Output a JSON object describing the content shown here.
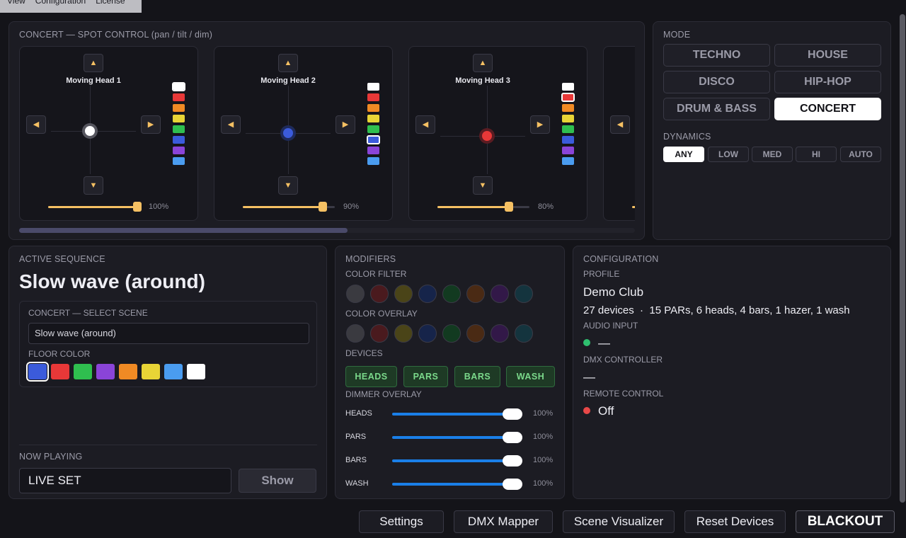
{
  "menu": [
    "View",
    "Configuration",
    "License"
  ],
  "spot": {
    "header": "CONCERT — SPOT CONTROL (pan / tilt / dim)",
    "up_glyph": "▲",
    "down_glyph": "▼",
    "left_glyph": "◀",
    "right_glyph": "▶",
    "heads": [
      {
        "name": "Moving Head 1",
        "dim": "100%",
        "dim_level": 1.0,
        "dot_color": "#ffffff",
        "selected_swatch": 0
      },
      {
        "name": "Moving Head 2",
        "dim": "90%",
        "dim_level": 0.9,
        "dot_color": "#3b5bdb",
        "selected_swatch": 5
      },
      {
        "name": "Moving Head 3",
        "dim": "80%",
        "dim_level": 0.8,
        "dot_color": "#e83838",
        "selected_swatch": 1
      }
    ],
    "swatch_colors": [
      "#ffffff",
      "#e83838",
      "#f08a24",
      "#e8d436",
      "#2fbf4f",
      "#3b5bdb",
      "#8a44d8",
      "#4a9cf0"
    ]
  },
  "mode": {
    "header": "MODE",
    "buttons": [
      "TECHNO",
      "HOUSE",
      "DISCO",
      "HIP-HOP",
      "DRUM & BASS",
      "CONCERT"
    ],
    "active": "CONCERT",
    "dynamics_header": "DYNAMICS",
    "dynamics": [
      "ANY",
      "LOW",
      "MED",
      "HI",
      "AUTO"
    ],
    "dynamics_active": "ANY"
  },
  "sequence": {
    "header": "ACTIVE SEQUENCE",
    "title": "Slow wave (around)",
    "select_header": "CONCERT — SELECT SCENE",
    "select_value": "Slow wave (around)",
    "floor_header": "FLOOR COLOR",
    "floor_colors": [
      "#3b5bdb",
      "#e83838",
      "#2fbf4f",
      "#8a44d8",
      "#f08a24",
      "#e8d436",
      "#4a9cf0",
      "#ffffff"
    ],
    "now_playing_header": "NOW PLAYING",
    "now_playing": "LIVE SET",
    "show_label": "Show"
  },
  "modifiers": {
    "header": "MODIFIERS",
    "color_filter_header": "COLOR FILTER",
    "color_overlay_header": "COLOR OVERLAY",
    "color_dots": [
      "#3a3a40",
      "#4a1a1e",
      "#4a4418",
      "#16244a",
      "#123a20",
      "#4a2a14",
      "#321848",
      "#14343e"
    ],
    "devices_header": "DEVICES",
    "devices": [
      "HEADS",
      "PARS",
      "BARS",
      "WASH"
    ],
    "dimmer_header": "DIMMER OVERLAY",
    "dimmers": [
      {
        "label": "HEADS",
        "value": "100%"
      },
      {
        "label": "PARS",
        "value": "100%"
      },
      {
        "label": "BARS",
        "value": "100%"
      },
      {
        "label": "WASH",
        "value": "100%"
      }
    ]
  },
  "config": {
    "header": "CONFIGURATION",
    "profile_header": "PROFILE",
    "profile": "Demo Club",
    "devices_summary": "27 devices  ·  15 PARs, 6 heads, 4 bars, 1 hazer, 1 wash",
    "audio_header": "AUDIO INPUT",
    "audio_value": "—",
    "audio_status_color": "#2fbf6f",
    "dmx_header": "DMX CONTROLLER",
    "dmx_value": "—",
    "remote_header": "REMOTE CONTROL",
    "remote_value": "Off",
    "remote_status_color": "#e84848"
  },
  "footer": [
    "Settings",
    "DMX Mapper",
    "Scene Visualizer",
    "Reset Devices",
    "BLACKOUT"
  ]
}
